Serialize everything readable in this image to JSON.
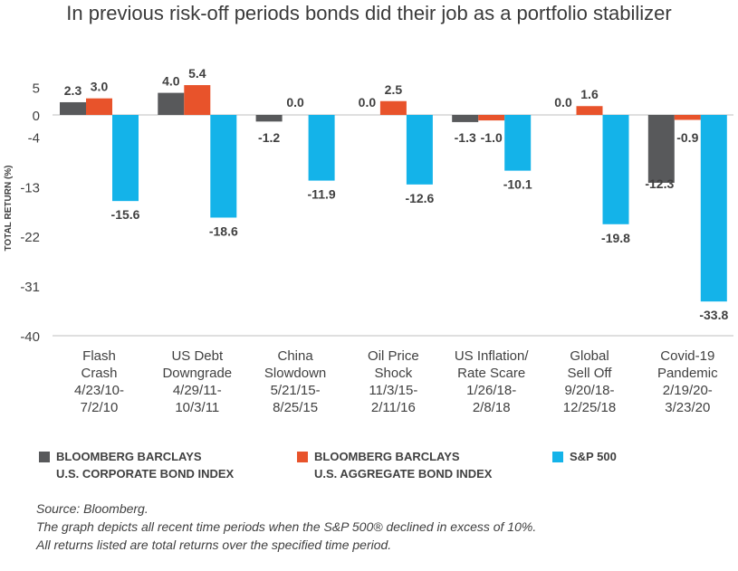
{
  "title": "In previous risk-off periods bonds did their job as a portfolio stabilizer",
  "chart_data": {
    "type": "bar",
    "title": "In previous risk-off periods bonds did their job as a portfolio stabilizer",
    "xlabel": "",
    "ylabel": "TOTAL RETURN (%)",
    "ylim": [
      -40,
      9
    ],
    "yticks": [
      5,
      0,
      -4,
      -13,
      -22,
      -31,
      -40
    ],
    "grid": false,
    "legend_position": "bottom",
    "categories": [
      [
        "Flash",
        "Crash",
        "4/23/10-",
        "7/2/10"
      ],
      [
        "US Debt",
        "Downgrade",
        "4/29/11-",
        "10/3/11"
      ],
      [
        "China",
        "Slowdown",
        "5/21/15-",
        "8/25/15"
      ],
      [
        "Oil Price",
        "Shock",
        "11/3/15-",
        "2/11/16"
      ],
      [
        "US Inflation/",
        "Rate Scare",
        "1/26/18-",
        "2/8/18"
      ],
      [
        "Global",
        "Sell Off",
        "9/20/18-",
        "12/25/18"
      ],
      [
        "Covid-19",
        "Pandemic",
        "2/19/20-",
        "3/23/20"
      ]
    ],
    "series": [
      {
        "name": [
          "BLOOMBERG BARCLAYS",
          "U.S. CORPORATE BOND INDEX"
        ],
        "color": "#58595b",
        "values": [
          2.3,
          4.0,
          -1.2,
          0.0,
          -1.3,
          0.0,
          -12.3
        ],
        "labels": [
          "2.3",
          "4.0",
          "-1.2",
          "0.0",
          "-1.3",
          "0.0",
          "-12.3"
        ]
      },
      {
        "name": [
          "BLOOMBERG BARCLAYS",
          "U.S. AGGREGATE BOND INDEX"
        ],
        "color": "#e8532b",
        "values": [
          3.0,
          5.4,
          0.0,
          2.5,
          -1.0,
          1.6,
          -0.9
        ],
        "labels": [
          "3.0",
          "5.4",
          "0.0",
          "2.5",
          "-1.0",
          "1.6",
          "-0.9"
        ]
      },
      {
        "name": [
          "S&P 500"
        ],
        "color": "#14b3e9",
        "values": [
          -15.6,
          -18.6,
          -11.9,
          -12.6,
          -10.1,
          -19.8,
          -33.8
        ],
        "labels": [
          "-15.6",
          "-18.6",
          "-11.9",
          "-12.6",
          "-10.1",
          "-19.8",
          "-33.8"
        ]
      }
    ]
  },
  "notes": [
    "Source: Bloomberg.",
    "The graph depicts all recent time periods when the S&P 500® declined in excess of 10%.",
    "All returns listed are total returns over the specified time period."
  ]
}
